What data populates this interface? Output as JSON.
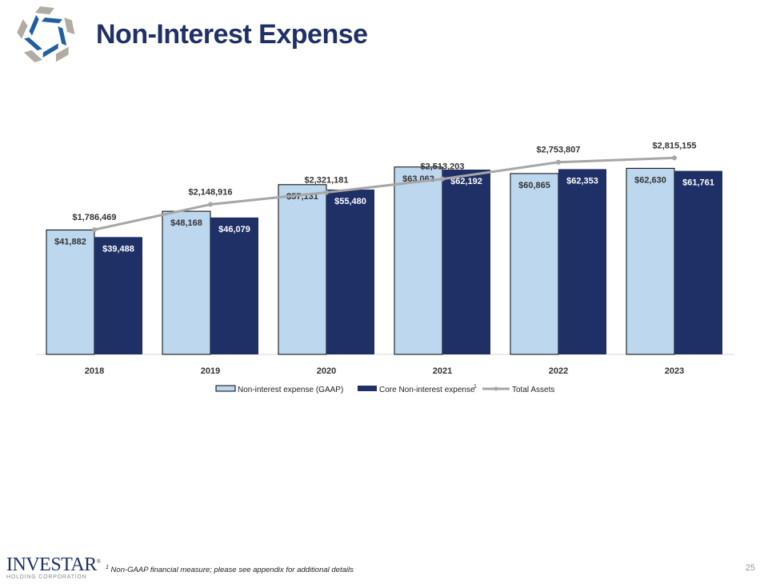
{
  "header": {
    "title": "Non-Interest Expense"
  },
  "chart_data": {
    "type": "bar",
    "categories": [
      "2018",
      "2019",
      "2020",
      "2021",
      "2022",
      "2023"
    ],
    "series": [
      {
        "name": "Non-interest expense (GAAP)",
        "type": "bar",
        "color": "#bdd7ee",
        "values": [
          41882,
          48168,
          57131,
          63062,
          60865,
          62630
        ],
        "labels": [
          "$41,882",
          "$48,168",
          "$57,131",
          "$63,062",
          "$60,865",
          "$62,630"
        ]
      },
      {
        "name": "Core Non-interest expense",
        "name_superscript": "1",
        "type": "bar",
        "color": "#1f3066",
        "values": [
          39488,
          46079,
          55480,
          62192,
          62353,
          61761
        ],
        "labels": [
          "$39,488",
          "$46,079",
          "$55,480",
          "$62,192",
          "$62,353",
          "$61,761"
        ]
      },
      {
        "name": "Total Assets",
        "type": "line",
        "axis": "secondary",
        "color": "#a6a6a6",
        "values": [
          1786469,
          2148916,
          2321181,
          2513203,
          2753807,
          2815155
        ],
        "labels": [
          "$1,786,469",
          "$2,148,916",
          "$2,321,181",
          "$2,513,203",
          "$2,753,807",
          "$2,815,155"
        ]
      }
    ],
    "ylim": [
      0,
      70000
    ],
    "y2lim": [
      0,
      2980000
    ],
    "grid": false,
    "legend": "bottom"
  },
  "footer": {
    "note_sup": "1",
    "note": "Non-GAAP financial measure; please see appendix for additional details",
    "page": "25",
    "brand": "INVESTAR",
    "brand_mark": "®",
    "brand_sub": "HOLDING CORPORATION"
  }
}
